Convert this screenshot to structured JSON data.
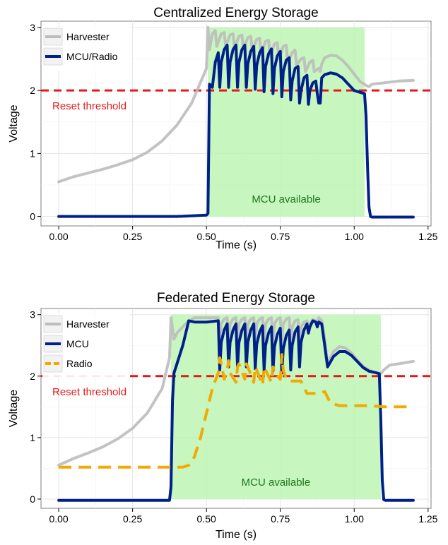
{
  "chart_data": [
    {
      "type": "line",
      "title": "Centralized Energy Storage",
      "xlabel": "Time (s)",
      "ylabel": "Voltage",
      "xlim": [
        -0.06,
        1.26
      ],
      "ylim": [
        -0.15,
        3.1
      ],
      "x_ticks": [
        0.0,
        0.25,
        0.5,
        0.75,
        1.0,
        1.25
      ],
      "x_tick_labels": [
        "0.00",
        "0.25",
        "0.50",
        "0.75",
        "1.00",
        "1.25"
      ],
      "y_ticks": [
        0,
        1,
        2,
        3
      ],
      "y_tick_labels": [
        "0",
        "1",
        "2",
        "3"
      ],
      "grid": true,
      "legend_position": "top-left",
      "reset_threshold": {
        "value": 2.0,
        "label": "Reset threshold",
        "color": "#e31a1c"
      },
      "available_region": {
        "x_start": 0.505,
        "x_end": 1.035,
        "y_start": 0,
        "y_end": 3.0,
        "label": "MCU available",
        "fill": "#bdf5b4",
        "label_color": "#1a7a1a"
      },
      "series": [
        {
          "name": "Harvester",
          "color": "#bcbcbc",
          "dash": "solid",
          "x": [
            0.0,
            0.05,
            0.1,
            0.15,
            0.2,
            0.25,
            0.3,
            0.35,
            0.4,
            0.45,
            0.5,
            0.505,
            0.51,
            0.52,
            0.53,
            0.535,
            0.55,
            0.56,
            0.565,
            0.58,
            0.59,
            0.595,
            0.61,
            0.62,
            0.625,
            0.64,
            0.65,
            0.655,
            0.67,
            0.68,
            0.685,
            0.7,
            0.71,
            0.715,
            0.73,
            0.74,
            0.745,
            0.76,
            0.77,
            0.775,
            0.79,
            0.8,
            0.805,
            0.82,
            0.83,
            0.835,
            0.85,
            0.86,
            0.865,
            0.88,
            0.885,
            0.89,
            0.9,
            0.92,
            0.94,
            0.96,
            0.98,
            1.0,
            1.02,
            1.035,
            1.04,
            1.05,
            1.06,
            1.1,
            1.15,
            1.2
          ],
          "y": [
            0.55,
            0.63,
            0.69,
            0.75,
            0.82,
            0.9,
            1.02,
            1.2,
            1.45,
            1.8,
            2.35,
            3.0,
            2.65,
            2.9,
            2.95,
            2.7,
            2.9,
            2.92,
            2.7,
            2.88,
            2.9,
            2.68,
            2.86,
            2.88,
            2.66,
            2.84,
            2.86,
            2.63,
            2.81,
            2.83,
            2.58,
            2.78,
            2.8,
            2.54,
            2.74,
            2.76,
            2.5,
            2.7,
            2.72,
            2.45,
            2.6,
            2.64,
            2.4,
            2.5,
            2.52,
            2.3,
            2.45,
            2.48,
            2.3,
            2.35,
            2.3,
            2.42,
            2.52,
            2.56,
            2.55,
            2.48,
            2.38,
            2.26,
            2.14,
            2.1,
            2.08,
            2.06,
            2.1,
            2.12,
            2.15,
            2.16
          ]
        },
        {
          "name": "MCU/Radio",
          "color": "#00208a",
          "dash": "solid",
          "x": [
            0.0,
            0.1,
            0.2,
            0.3,
            0.4,
            0.5,
            0.505,
            0.51,
            0.52,
            0.53,
            0.54,
            0.545,
            0.55,
            0.56,
            0.57,
            0.575,
            0.58,
            0.59,
            0.6,
            0.605,
            0.61,
            0.62,
            0.63,
            0.635,
            0.64,
            0.65,
            0.66,
            0.665,
            0.67,
            0.68,
            0.69,
            0.695,
            0.7,
            0.71,
            0.72,
            0.725,
            0.73,
            0.74,
            0.75,
            0.755,
            0.76,
            0.77,
            0.78,
            0.785,
            0.79,
            0.8,
            0.81,
            0.815,
            0.82,
            0.83,
            0.84,
            0.845,
            0.85,
            0.86,
            0.87,
            0.875,
            0.88,
            0.885,
            0.89,
            0.9,
            0.92,
            0.94,
            0.96,
            0.98,
            1.0,
            1.02,
            1.035,
            1.04,
            1.045,
            1.05,
            1.055,
            1.06,
            1.1,
            1.15,
            1.2
          ],
          "y": [
            0.0,
            0.0,
            0.0,
            0.0,
            0.0,
            0.02,
            0.05,
            2.1,
            2.05,
            2.45,
            2.6,
            2.05,
            2.45,
            2.65,
            2.72,
            2.05,
            2.45,
            2.65,
            2.72,
            2.05,
            2.45,
            2.65,
            2.72,
            2.05,
            2.42,
            2.62,
            2.7,
            2.02,
            2.4,
            2.6,
            2.68,
            1.98,
            2.38,
            2.58,
            2.66,
            1.95,
            2.35,
            2.55,
            2.62,
            1.9,
            2.3,
            2.48,
            2.52,
            1.85,
            2.15,
            2.35,
            2.38,
            1.8,
            2.0,
            2.2,
            2.24,
            1.78,
            2.0,
            2.12,
            2.15,
            1.95,
            1.8,
            1.8,
            2.2,
            2.25,
            2.28,
            2.26,
            2.2,
            2.1,
            2.0,
            1.97,
            1.95,
            1.6,
            0.8,
            0.15,
            0.0,
            -0.01,
            -0.01,
            -0.01,
            -0.01
          ]
        }
      ]
    },
    {
      "type": "line",
      "title": "Federated Energy Storage",
      "xlabel": "Time (s)",
      "ylabel": "Voltage",
      "xlim": [
        -0.06,
        1.26
      ],
      "ylim": [
        -0.15,
        3.1
      ],
      "x_ticks": [
        0.0,
        0.25,
        0.5,
        0.75,
        1.0,
        1.25
      ],
      "x_tick_labels": [
        "0.00",
        "0.25",
        "0.50",
        "0.75",
        "1.00",
        "1.25"
      ],
      "y_ticks": [
        0,
        1,
        2,
        3
      ],
      "y_tick_labels": [
        "0",
        "1",
        "2",
        "3"
      ],
      "grid": true,
      "legend_position": "top-left",
      "reset_threshold": {
        "value": 2.0,
        "label": "Reset threshold",
        "color": "#e31a1c"
      },
      "available_region": {
        "x_start": 0.38,
        "x_end": 1.09,
        "y_start": 0,
        "y_end": 3.0,
        "label": "MCU available",
        "fill": "#bdf5b4",
        "label_color": "#1a7a1a"
      },
      "series": [
        {
          "name": "Harvester",
          "color": "#bcbcbc",
          "dash": "solid",
          "x": [
            0.0,
            0.05,
            0.1,
            0.15,
            0.2,
            0.25,
            0.3,
            0.35,
            0.375,
            0.38,
            0.39,
            0.4,
            0.42,
            0.44,
            0.46,
            0.48,
            0.5,
            0.52,
            0.54,
            0.545,
            0.55,
            0.56,
            0.57,
            0.575,
            0.58,
            0.59,
            0.6,
            0.605,
            0.61,
            0.62,
            0.63,
            0.635,
            0.64,
            0.65,
            0.66,
            0.665,
            0.67,
            0.68,
            0.69,
            0.695,
            0.7,
            0.71,
            0.72,
            0.725,
            0.73,
            0.74,
            0.75,
            0.755,
            0.76,
            0.77,
            0.78,
            0.785,
            0.79,
            0.8,
            0.81,
            0.815,
            0.82,
            0.83,
            0.84,
            0.845,
            0.85,
            0.86,
            0.87,
            0.875,
            0.88,
            0.89,
            0.9,
            0.91,
            0.93,
            0.95,
            0.97,
            0.99,
            1.01,
            1.03,
            1.05,
            1.07,
            1.09,
            1.1,
            1.12,
            1.15,
            1.2
          ],
          "y": [
            0.55,
            0.66,
            0.75,
            0.85,
            0.98,
            1.15,
            1.4,
            1.8,
            2.3,
            2.95,
            2.6,
            2.7,
            2.8,
            2.9,
            2.95,
            2.95,
            2.95,
            2.95,
            2.95,
            2.6,
            2.85,
            2.93,
            2.95,
            2.6,
            2.85,
            2.93,
            2.95,
            2.6,
            2.85,
            2.93,
            2.95,
            2.6,
            2.85,
            2.93,
            2.95,
            2.6,
            2.85,
            2.93,
            2.95,
            2.6,
            2.85,
            2.93,
            2.95,
            2.6,
            2.85,
            2.93,
            2.95,
            2.6,
            2.85,
            2.93,
            2.95,
            2.55,
            2.8,
            2.9,
            2.92,
            2.55,
            2.8,
            2.88,
            2.9,
            2.8,
            2.85,
            2.92,
            2.9,
            2.85,
            2.95,
            2.9,
            2.6,
            2.2,
            2.4,
            2.48,
            2.46,
            2.38,
            2.26,
            2.16,
            2.1,
            2.06,
            2.04,
            2.1,
            2.18,
            2.2,
            2.24
          ]
        },
        {
          "name": "MCU",
          "color": "#00208a",
          "dash": "solid",
          "x": [
            0.0,
            0.1,
            0.2,
            0.3,
            0.375,
            0.38,
            0.385,
            0.39,
            0.4,
            0.42,
            0.44,
            0.46,
            0.5,
            0.54,
            0.545,
            0.55,
            0.56,
            0.57,
            0.575,
            0.58,
            0.59,
            0.6,
            0.605,
            0.61,
            0.62,
            0.63,
            0.635,
            0.64,
            0.65,
            0.66,
            0.665,
            0.67,
            0.68,
            0.69,
            0.695,
            0.7,
            0.71,
            0.72,
            0.725,
            0.73,
            0.74,
            0.75,
            0.755,
            0.76,
            0.77,
            0.78,
            0.785,
            0.79,
            0.8,
            0.81,
            0.815,
            0.82,
            0.83,
            0.84,
            0.845,
            0.85,
            0.86,
            0.87,
            0.875,
            0.88,
            0.89,
            0.9,
            0.91,
            0.93,
            0.95,
            0.97,
            0.99,
            1.01,
            1.03,
            1.05,
            1.07,
            1.085,
            1.09,
            1.095,
            1.1,
            1.105,
            1.12,
            1.15,
            1.2
          ],
          "y": [
            -0.02,
            -0.02,
            -0.02,
            -0.02,
            -0.02,
            0.2,
            1.6,
            2.05,
            2.2,
            2.5,
            2.9,
            2.88,
            2.88,
            2.9,
            2.1,
            2.55,
            2.75,
            2.85,
            2.15,
            2.55,
            2.75,
            2.85,
            2.15,
            2.55,
            2.75,
            2.85,
            2.15,
            2.55,
            2.75,
            2.85,
            2.12,
            2.52,
            2.72,
            2.82,
            2.1,
            2.5,
            2.7,
            2.8,
            2.08,
            2.48,
            2.68,
            2.78,
            2.05,
            2.45,
            2.66,
            2.75,
            2.1,
            2.5,
            2.72,
            2.8,
            2.15,
            2.55,
            2.75,
            2.85,
            2.7,
            2.8,
            2.9,
            2.88,
            2.8,
            2.88,
            2.85,
            2.5,
            2.15,
            2.32,
            2.4,
            2.4,
            2.34,
            2.24,
            2.14,
            2.08,
            2.06,
            2.04,
            1.3,
            0.3,
            -0.01,
            -0.02,
            -0.02,
            -0.02,
            -0.02
          ]
        },
        {
          "name": "Radio",
          "color": "#f2a900",
          "dash": "dashed",
          "x": [
            0.0,
            0.05,
            0.1,
            0.15,
            0.2,
            0.25,
            0.3,
            0.35,
            0.38,
            0.4,
            0.42,
            0.44,
            0.45,
            0.46,
            0.48,
            0.5,
            0.52,
            0.54,
            0.545,
            0.55,
            0.56,
            0.57,
            0.575,
            0.58,
            0.6,
            0.605,
            0.61,
            0.63,
            0.635,
            0.64,
            0.66,
            0.665,
            0.67,
            0.69,
            0.695,
            0.7,
            0.72,
            0.725,
            0.73,
            0.75,
            0.755,
            0.76,
            0.77,
            0.78,
            0.8,
            0.82,
            0.84,
            0.86,
            0.88,
            0.9,
            0.92,
            0.95,
            1.0,
            1.05,
            1.1,
            1.15,
            1.2
          ],
          "y": [
            0.52,
            0.52,
            0.52,
            0.52,
            0.52,
            0.52,
            0.52,
            0.52,
            0.52,
            0.52,
            0.52,
            0.55,
            0.6,
            0.7,
            1.0,
            1.4,
            1.8,
            2.05,
            2.3,
            2.2,
            1.95,
            2.1,
            2.25,
            2.05,
            1.9,
            2.15,
            2.2,
            1.95,
            2.2,
            2.15,
            1.9,
            2.15,
            2.1,
            1.85,
            2.15,
            2.1,
            1.9,
            2.15,
            2.05,
            1.95,
            2.35,
            2.1,
            1.95,
            1.92,
            1.92,
            1.92,
            1.72,
            1.72,
            1.72,
            1.75,
            1.56,
            1.52,
            1.52,
            1.52,
            1.5,
            1.5,
            1.5
          ]
        }
      ]
    }
  ]
}
